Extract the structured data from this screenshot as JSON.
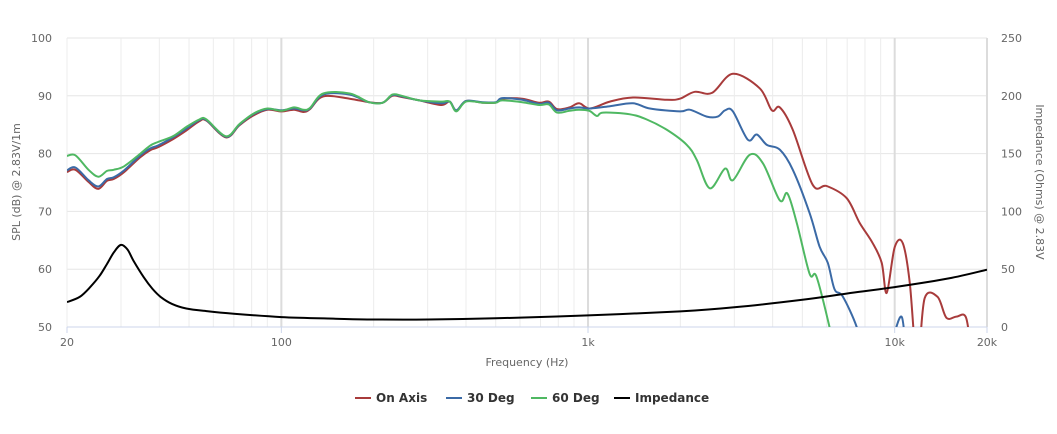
{
  "chart_data": {
    "type": "line",
    "title": "",
    "xlabel": "Frequency (Hz)",
    "ylabel": "SPL (dB) @ 2.83V/1m",
    "y2label": "Impedance (Ohms) @ 2.83V",
    "xscale": "log",
    "xlim": [
      20,
      20000
    ],
    "ylim": [
      50,
      100
    ],
    "y2lim": [
      0,
      250
    ],
    "grid": true,
    "legend_position": "bottom",
    "x_ticks": [
      "20",
      "100",
      "1k",
      "10k",
      "20k"
    ],
    "x_tick_values": [
      20,
      100,
      1000,
      10000,
      20000
    ],
    "y_ticks": [
      50,
      60,
      70,
      80,
      90,
      100
    ],
    "y2_ticks": [
      0,
      50,
      100,
      150,
      200,
      250
    ],
    "series": [
      {
        "name": "On Axis",
        "color": "#a83b3b",
        "axis": "left",
        "points": [
          [
            20,
            76.8
          ],
          [
            21.3,
            77.2
          ],
          [
            23.5,
            75.1
          ],
          [
            25.3,
            73.9
          ],
          [
            27,
            75.3
          ],
          [
            28.4,
            75.6
          ],
          [
            30.7,
            76.8
          ],
          [
            34.7,
            79.4
          ],
          [
            37.4,
            80.6
          ],
          [
            39.6,
            81.1
          ],
          [
            44.3,
            82.5
          ],
          [
            49,
            84
          ],
          [
            54,
            85.6
          ],
          [
            57,
            85.7
          ],
          [
            66,
            82.8
          ],
          [
            73,
            84.9
          ],
          [
            81,
            86.6
          ],
          [
            90,
            87.6
          ],
          [
            100,
            87.3
          ],
          [
            110,
            87.6
          ],
          [
            118,
            87.2
          ],
          [
            124,
            87.7
          ],
          [
            137,
            89.9
          ],
          [
            167,
            89.5
          ],
          [
            193,
            88.9
          ],
          [
            214,
            88.8
          ],
          [
            230,
            90.0
          ],
          [
            247,
            89.8
          ],
          [
            282,
            89.2
          ],
          [
            333,
            88.4
          ],
          [
            354,
            89.0
          ],
          [
            372,
            87.4
          ],
          [
            400,
            89.1
          ],
          [
            453,
            88.8
          ],
          [
            500,
            88.8
          ],
          [
            525,
            89.5
          ],
          [
            610,
            89.5
          ],
          [
            693,
            88.8
          ],
          [
            745,
            89.0
          ],
          [
            792,
            87.7
          ],
          [
            870,
            88.0
          ],
          [
            935,
            88.7
          ],
          [
            1015,
            87.8
          ],
          [
            1179,
            89.0
          ],
          [
            1402,
            89.7
          ],
          [
            1809,
            89.3
          ],
          [
            1994,
            89.5
          ],
          [
            2229,
            90.7
          ],
          [
            2537,
            90.5
          ],
          [
            2967,
            93.8
          ],
          [
            3630,
            91.3
          ],
          [
            3976,
            87.5
          ],
          [
            4220,
            88
          ],
          [
            4655,
            84.1
          ],
          [
            5405,
            74.6
          ],
          [
            6000,
            74.4
          ],
          [
            6970,
            72.3
          ],
          [
            7690,
            68
          ],
          [
            8480,
            64.5
          ],
          [
            9070,
            61.1
          ],
          [
            9420,
            55.9
          ],
          [
            10000,
            63.8
          ],
          [
            10630,
            64.5
          ],
          [
            11200,
            57.6
          ],
          [
            11700,
            45
          ],
          [
            12000,
            45
          ],
          [
            12530,
            55.0
          ],
          [
            13800,
            55.2
          ],
          [
            14750,
            51.6
          ],
          [
            15900,
            51.8
          ],
          [
            17100,
            51.6
          ],
          [
            17800,
            45
          ]
        ]
      },
      {
        "name": "30 Deg",
        "color": "#3b6aa6",
        "axis": "left",
        "points": [
          [
            20,
            77.1
          ],
          [
            21.3,
            77.6
          ],
          [
            23.5,
            75.4
          ],
          [
            25.3,
            74.3
          ],
          [
            27,
            75.6
          ],
          [
            28.4,
            75.9
          ],
          [
            30.7,
            77.1
          ],
          [
            34.7,
            79.7
          ],
          [
            37.4,
            80.9
          ],
          [
            39.6,
            81.4
          ],
          [
            44.3,
            82.8
          ],
          [
            49,
            84.3
          ],
          [
            54,
            85.8
          ],
          [
            57,
            85.8
          ],
          [
            66,
            82.9
          ],
          [
            73,
            85
          ],
          [
            81,
            86.8
          ],
          [
            90,
            87.7
          ],
          [
            100,
            87.5
          ],
          [
            110,
            87.8
          ],
          [
            118,
            87.5
          ],
          [
            124,
            87.8
          ],
          [
            137,
            90.2
          ],
          [
            167,
            90.2
          ],
          [
            193,
            88.9
          ],
          [
            214,
            88.8
          ],
          [
            230,
            90.1
          ],
          [
            247,
            89.9
          ],
          [
            282,
            89.2
          ],
          [
            333,
            88.7
          ],
          [
            354,
            89.0
          ],
          [
            372,
            87.5
          ],
          [
            400,
            89.1
          ],
          [
            453,
            88.9
          ],
          [
            500,
            88.9
          ],
          [
            525,
            89.6
          ],
          [
            610,
            89.3
          ],
          [
            693,
            88.6
          ],
          [
            745,
            88.8
          ],
          [
            792,
            87.5
          ],
          [
            870,
            87.8
          ],
          [
            935,
            88.0
          ],
          [
            1015,
            87.8
          ],
          [
            1179,
            88.2
          ],
          [
            1402,
            88.7
          ],
          [
            1592,
            87.8
          ],
          [
            1994,
            87.3
          ],
          [
            2148,
            87.6
          ],
          [
            2440,
            86.4
          ],
          [
            2650,
            86.4
          ],
          [
            2800,
            87.5
          ],
          [
            2967,
            87.3
          ],
          [
            3320,
            82.4
          ],
          [
            3550,
            83.3
          ],
          [
            3830,
            81.5
          ],
          [
            4220,
            80.7
          ],
          [
            4655,
            77.2
          ],
          [
            5280,
            69.7
          ],
          [
            5690,
            63.9
          ],
          [
            6050,
            61.1
          ],
          [
            6370,
            56.5
          ],
          [
            6770,
            55.3
          ],
          [
            7520,
            50
          ],
          [
            7900,
            45
          ],
          [
            9700,
            45
          ],
          [
            10000,
            49
          ],
          [
            10560,
            51.7
          ],
          [
            10900,
            45
          ]
        ]
      },
      {
        "name": "60 Deg",
        "color": "#4fb862",
        "axis": "left",
        "points": [
          [
            20,
            79.6
          ],
          [
            21.3,
            79.7
          ],
          [
            23.5,
            77.2
          ],
          [
            25.3,
            76
          ],
          [
            27,
            77
          ],
          [
            28.4,
            77.2
          ],
          [
            30.7,
            77.8
          ],
          [
            34.7,
            80
          ],
          [
            37.4,
            81.4
          ],
          [
            39.6,
            82
          ],
          [
            44.3,
            83
          ],
          [
            49,
            84.6
          ],
          [
            54,
            85.9
          ],
          [
            57,
            85.9
          ],
          [
            66,
            83
          ],
          [
            73,
            85.1
          ],
          [
            81,
            86.9
          ],
          [
            90,
            87.8
          ],
          [
            100,
            87.4
          ],
          [
            110,
            88
          ],
          [
            118,
            87.6
          ],
          [
            124,
            87.9
          ],
          [
            137,
            90.4
          ],
          [
            167,
            90.4
          ],
          [
            193,
            88.9
          ],
          [
            214,
            88.8
          ],
          [
            230,
            90.2
          ],
          [
            247,
            90.0
          ],
          [
            282,
            89.2
          ],
          [
            333,
            89.0
          ],
          [
            354,
            89.0
          ],
          [
            372,
            87.3
          ],
          [
            400,
            89.0
          ],
          [
            453,
            88.8
          ],
          [
            500,
            88.8
          ],
          [
            525,
            89.2
          ],
          [
            610,
            88.9
          ],
          [
            693,
            88.4
          ],
          [
            745,
            88.5
          ],
          [
            792,
            87.1
          ],
          [
            870,
            87.4
          ],
          [
            935,
            87.6
          ],
          [
            1010,
            87.4
          ],
          [
            1070,
            86.5
          ],
          [
            1120,
            87.1
          ],
          [
            1370,
            86.8
          ],
          [
            1555,
            85.9
          ],
          [
            1809,
            84.1
          ],
          [
            2100,
            81.5
          ],
          [
            2263,
            78.9
          ],
          [
            2495,
            74.0
          ],
          [
            2800,
            77.4
          ],
          [
            2967,
            75.4
          ],
          [
            3370,
            79.8
          ],
          [
            3720,
            78.3
          ],
          [
            4220,
            71.9
          ],
          [
            4470,
            73.1
          ],
          [
            4800,
            67.9
          ],
          [
            5280,
            59.2
          ],
          [
            5560,
            58.7
          ],
          [
            6130,
            50
          ],
          [
            6400,
            45
          ]
        ]
      },
      {
        "name": "Impedance",
        "color": "#000000",
        "axis": "right",
        "points": [
          [
            20,
            21.5
          ],
          [
            22,
            26
          ],
          [
            23.8,
            34.5
          ],
          [
            25.5,
            44
          ],
          [
            27,
            54.5
          ],
          [
            28.5,
            65
          ],
          [
            30,
            71
          ],
          [
            31.5,
            67
          ],
          [
            33,
            57
          ],
          [
            35.6,
            43
          ],
          [
            38,
            33
          ],
          [
            40.4,
            26
          ],
          [
            44,
            20
          ],
          [
            49,
            16
          ],
          [
            58,
            13.5
          ],
          [
            70,
            11.5
          ],
          [
            100,
            8.6
          ],
          [
            150,
            7.2
          ],
          [
            200,
            6.5
          ],
          [
            300,
            6.5
          ],
          [
            500,
            7.5
          ],
          [
            1000,
            10
          ],
          [
            2000,
            13.5
          ],
          [
            3000,
            17
          ],
          [
            5000,
            23.5
          ],
          [
            7000,
            29
          ],
          [
            10000,
            34.5
          ],
          [
            15000,
            42
          ],
          [
            20000,
            49.6
          ]
        ]
      }
    ]
  }
}
